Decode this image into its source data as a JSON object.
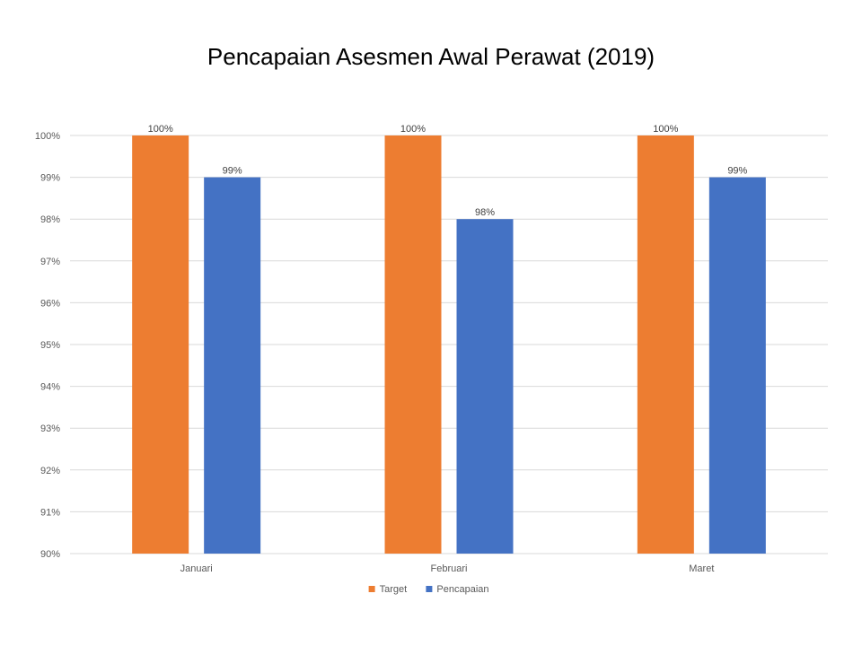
{
  "chart_data": {
    "type": "bar",
    "title": "Pencapaian Asesmen Awal Perawat (2019)",
    "categories": [
      "Januari",
      "Februari",
      "Maret"
    ],
    "series": [
      {
        "name": "Target",
        "values": [
          100,
          100,
          100
        ],
        "color": "#ED7D31",
        "labels": [
          "100%",
          "100%",
          "100%"
        ]
      },
      {
        "name": "Pencapaian",
        "values": [
          99,
          98,
          99
        ],
        "color": "#4472C4",
        "labels": [
          "99%",
          "98%",
          "99%"
        ]
      }
    ],
    "ylim": [
      90,
      100
    ],
    "yticks": [
      {
        "value": 90,
        "label": "90%"
      },
      {
        "value": 91,
        "label": "91%"
      },
      {
        "value": 92,
        "label": "92%"
      },
      {
        "value": 93,
        "label": "93%"
      },
      {
        "value": 94,
        "label": "94%"
      },
      {
        "value": 95,
        "label": "95%"
      },
      {
        "value": 96,
        "label": "96%"
      },
      {
        "value": 97,
        "label": "97%"
      },
      {
        "value": 98,
        "label": "98%"
      },
      {
        "value": 99,
        "label": "99%"
      },
      {
        "value": 100,
        "label": "100%"
      }
    ],
    "grid": true,
    "legend": "bottom"
  }
}
